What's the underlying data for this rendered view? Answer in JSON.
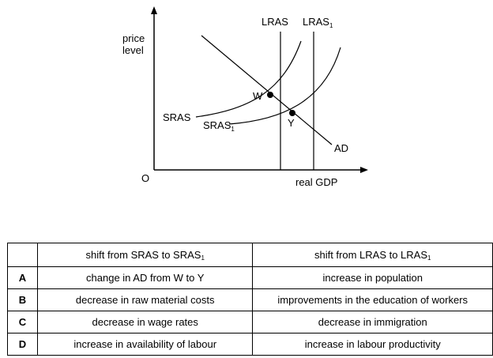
{
  "diagram": {
    "y_axis_label_line1": "price",
    "y_axis_label_line2": "level",
    "x_axis_label": "real GDP",
    "origin_label": "O",
    "lras_label": "LRAS",
    "lras1_label": "LRAS",
    "lras1_sub": "1",
    "sras_label": "SRAS",
    "sras1_label": "SRAS",
    "sras1_sub": "1",
    "ad_label": "AD",
    "point_w_label": "W",
    "point_y_label": "Y"
  },
  "table": {
    "header_col1": "shift from SRAS to SRAS",
    "header_col1_sub": "1",
    "header_col2": "shift from LRAS to LRAS",
    "header_col2_sub": "1",
    "rows": [
      {
        "letter": "A",
        "col1": "change in AD from W to Y",
        "col2": "increase in population"
      },
      {
        "letter": "B",
        "col1": "decrease in raw material costs",
        "col2": "improvements in the education of workers"
      },
      {
        "letter": "C",
        "col1": "decrease in wage rates",
        "col2": "decrease in immigration"
      },
      {
        "letter": "D",
        "col1": "increase in availability of labour",
        "col2": "increase in labour productivity"
      }
    ]
  }
}
